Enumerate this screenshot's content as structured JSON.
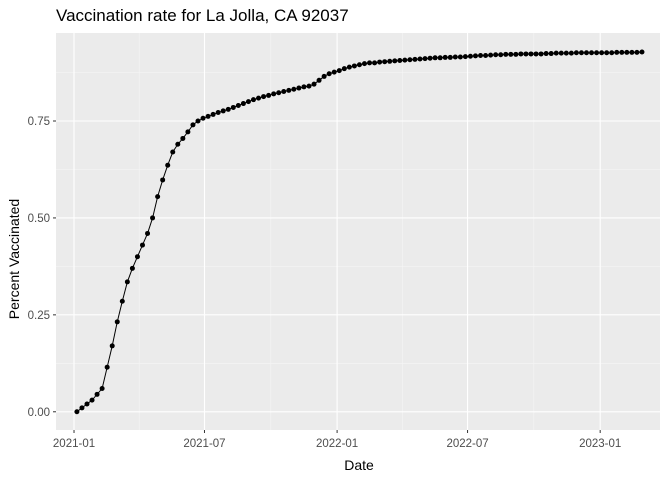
{
  "chart_data": {
    "type": "line",
    "title": "Vaccination rate for La Jolla, CA 92037",
    "xlabel": "Date",
    "ylabel": "Percent Vaccinated",
    "x_ticks": [
      "2021-01",
      "2021-07",
      "2022-01",
      "2022-07",
      "2023-01"
    ],
    "y_ticks": [
      "0.00",
      "0.25",
      "0.50",
      "0.75"
    ],
    "ylim": [
      -0.047,
      0.977
    ],
    "xlim": [
      "2020-12-07",
      "2023-03-25"
    ],
    "grid": true,
    "legend": "none",
    "colors": {
      "panel": "#ebebeb",
      "grid_major": "#ffffff",
      "grid_minor": "#f5f5f5",
      "line": "#000000",
      "point": "#000000"
    },
    "series": [
      {
        "x": [
          "2021-01-05",
          "2021-01-12",
          "2021-01-19",
          "2021-01-26",
          "2021-02-02",
          "2021-02-09",
          "2021-02-16",
          "2021-02-23",
          "2021-03-02",
          "2021-03-09",
          "2021-03-16",
          "2021-03-23",
          "2021-03-30",
          "2021-04-06",
          "2021-04-13",
          "2021-04-20",
          "2021-04-27",
          "2021-05-04",
          "2021-05-11",
          "2021-05-18",
          "2021-05-25",
          "2021-06-01",
          "2021-06-08",
          "2021-06-15",
          "2021-06-22",
          "2021-06-29",
          "2021-07-06",
          "2021-07-13",
          "2021-07-20",
          "2021-07-27",
          "2021-08-03",
          "2021-08-10",
          "2021-08-17",
          "2021-08-24",
          "2021-08-31",
          "2021-09-07",
          "2021-09-14",
          "2021-09-21",
          "2021-09-28",
          "2021-10-05",
          "2021-10-12",
          "2021-10-19",
          "2021-10-26",
          "2021-11-02",
          "2021-11-09",
          "2021-11-16",
          "2021-11-23",
          "2021-11-30",
          "2021-12-07",
          "2021-12-14",
          "2021-12-21",
          "2021-12-28",
          "2022-01-04",
          "2022-01-11",
          "2022-01-18",
          "2022-01-25",
          "2022-02-01",
          "2022-02-08",
          "2022-02-15",
          "2022-02-22",
          "2022-03-01",
          "2022-03-08",
          "2022-03-15",
          "2022-03-22",
          "2022-03-29",
          "2022-04-05",
          "2022-04-12",
          "2022-04-19",
          "2022-04-26",
          "2022-05-03",
          "2022-05-10",
          "2022-05-17",
          "2022-05-24",
          "2022-05-31",
          "2022-06-07",
          "2022-06-14",
          "2022-06-21",
          "2022-06-28",
          "2022-07-05",
          "2022-07-12",
          "2022-07-19",
          "2022-07-26",
          "2022-08-02",
          "2022-08-09",
          "2022-08-16",
          "2022-08-23",
          "2022-08-30",
          "2022-09-06",
          "2022-09-13",
          "2022-09-20",
          "2022-09-27",
          "2022-10-04",
          "2022-10-11",
          "2022-10-18",
          "2022-10-25",
          "2022-11-01",
          "2022-11-08",
          "2022-11-15",
          "2022-11-22",
          "2022-11-29",
          "2022-12-06",
          "2022-12-13",
          "2022-12-20",
          "2022-12-27",
          "2023-01-03",
          "2023-01-10",
          "2023-01-17",
          "2023-01-24",
          "2023-01-31",
          "2023-02-07",
          "2023-02-14",
          "2023-02-21",
          "2023-02-28"
        ],
        "y": [
          0.0,
          0.01,
          0.02,
          0.03,
          0.045,
          0.06,
          0.115,
          0.17,
          0.232,
          0.285,
          0.335,
          0.37,
          0.4,
          0.43,
          0.46,
          0.5,
          0.555,
          0.598,
          0.636,
          0.67,
          0.69,
          0.705,
          0.722,
          0.74,
          0.75,
          0.757,
          0.762,
          0.767,
          0.772,
          0.776,
          0.78,
          0.785,
          0.79,
          0.795,
          0.8,
          0.805,
          0.809,
          0.813,
          0.816,
          0.82,
          0.823,
          0.826,
          0.829,
          0.832,
          0.835,
          0.838,
          0.84,
          0.845,
          0.855,
          0.865,
          0.872,
          0.876,
          0.88,
          0.885,
          0.889,
          0.892,
          0.895,
          0.898,
          0.9,
          0.9,
          0.902,
          0.903,
          0.904,
          0.905,
          0.906,
          0.907,
          0.908,
          0.909,
          0.91,
          0.911,
          0.912,
          0.913,
          0.913,
          0.914,
          0.914,
          0.915,
          0.915,
          0.916,
          0.917,
          0.918,
          0.919,
          0.919,
          0.92,
          0.921,
          0.921,
          0.922,
          0.922,
          0.922,
          0.923,
          0.923,
          0.923,
          0.923,
          0.923,
          0.924,
          0.924,
          0.925,
          0.925,
          0.925,
          0.925,
          0.926,
          0.926,
          0.926,
          0.926,
          0.926,
          0.926,
          0.926,
          0.926,
          0.927,
          0.927,
          0.927,
          0.927,
          0.927,
          0.928
        ]
      }
    ]
  }
}
